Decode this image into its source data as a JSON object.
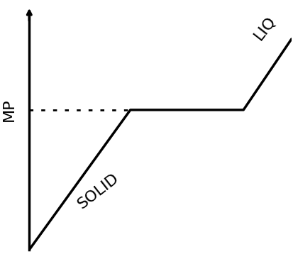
{
  "chart_data": {
    "type": "line",
    "x": [
      0,
      143,
      303,
      371
    ],
    "values": [
      0,
      197,
      197,
      297
    ],
    "xlim": [
      0,
      371
    ],
    "ylim": [
      0,
      330
    ],
    "y_label": "MP",
    "annotations": [
      {
        "text": "SOLID",
        "x": 98,
        "y": 82
      },
      {
        "text": "LIQ",
        "x": 333,
        "y": 312
      }
    ],
    "color": "#000000",
    "tick_labels": false
  }
}
